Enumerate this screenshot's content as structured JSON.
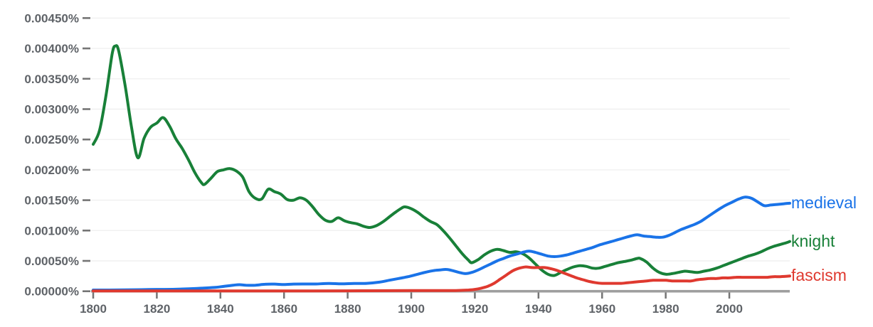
{
  "chart_data": {
    "type": "line",
    "title": "",
    "grid": true,
    "legend_position": "right-end-labels",
    "x_axis": {
      "min": 1800,
      "max": 2019,
      "tick_labels": [
        "1800",
        "1820",
        "1840",
        "1860",
        "1880",
        "1900",
        "1920",
        "1940",
        "1960",
        "1980",
        "2000"
      ],
      "tick_values": [
        1800,
        1820,
        1840,
        1860,
        1880,
        1900,
        1920,
        1940,
        1960,
        1980,
        2000
      ]
    },
    "y_axis": {
      "min": 0,
      "max": 0.0045,
      "unit": "%",
      "tick_labels": [
        "0.00000%",
        "0.00050%",
        "0.00100%",
        "0.00150%",
        "0.00200%",
        "0.00250%",
        "0.00300%",
        "0.00350%",
        "0.00400%",
        "0.00450%"
      ],
      "tick_values": [
        0.0,
        0.0005,
        0.001,
        0.0015,
        0.002,
        0.0025,
        0.003,
        0.0035,
        0.004,
        0.0045
      ]
    },
    "colors": {
      "medieval": "#1a73e8",
      "knight": "#188038",
      "fascism": "#df392f",
      "axis_line": "#9e9e9e",
      "tick": "#757575",
      "grid_line": "#f0f0f0",
      "axis_text": "#5f6368"
    },
    "series": [
      {
        "label": "medieval",
        "color": "#1a73e8",
        "points": [
          [
            1800,
            2e-05
          ],
          [
            1805,
            2e-05
          ],
          [
            1810,
            2.2e-05
          ],
          [
            1815,
            2.6e-05
          ],
          [
            1820,
            3e-05
          ],
          [
            1825,
            3.2e-05
          ],
          [
            1830,
            4e-05
          ],
          [
            1834,
            5e-05
          ],
          [
            1838,
            6.2e-05
          ],
          [
            1841,
            8e-05
          ],
          [
            1844,
            0.0001
          ],
          [
            1846,
            0.000108
          ],
          [
            1848,
            0.0001
          ],
          [
            1851,
            0.0001
          ],
          [
            1854,
            0.000115
          ],
          [
            1857,
            0.000118
          ],
          [
            1860,
            0.00011
          ],
          [
            1863,
            0.000118
          ],
          [
            1866,
            0.00012
          ],
          [
            1870,
            0.00012
          ],
          [
            1874,
            0.000128
          ],
          [
            1878,
            0.000122
          ],
          [
            1882,
            0.000128
          ],
          [
            1886,
            0.00013
          ],
          [
            1890,
            0.00015
          ],
          [
            1893,
            0.00018
          ],
          [
            1896,
            0.00021
          ],
          [
            1899,
            0.00024
          ],
          [
            1902,
            0.00028
          ],
          [
            1905,
            0.00032
          ],
          [
            1907,
            0.00034
          ],
          [
            1909,
            0.00035
          ],
          [
            1911,
            0.00036
          ],
          [
            1913,
            0.00034
          ],
          [
            1915,
            0.00031
          ],
          [
            1917,
            0.00029
          ],
          [
            1919,
            0.00031
          ],
          [
            1921,
            0.00035
          ],
          [
            1923,
            0.0004
          ],
          [
            1925,
            0.00045
          ],
          [
            1927,
            0.0005
          ],
          [
            1929,
            0.00054
          ],
          [
            1931,
            0.00058
          ],
          [
            1933,
            0.00061
          ],
          [
            1935,
            0.00064
          ],
          [
            1937,
            0.00066
          ],
          [
            1939,
            0.00064
          ],
          [
            1941,
            0.00061
          ],
          [
            1943,
            0.00058
          ],
          [
            1945,
            0.00057
          ],
          [
            1947,
            0.00058
          ],
          [
            1949,
            0.0006
          ],
          [
            1951,
            0.00063
          ],
          [
            1953,
            0.00066
          ],
          [
            1955,
            0.00069
          ],
          [
            1957,
            0.00072
          ],
          [
            1959,
            0.00076
          ],
          [
            1961,
            0.00079
          ],
          [
            1963,
            0.00082
          ],
          [
            1965,
            0.00085
          ],
          [
            1967,
            0.00088
          ],
          [
            1969,
            0.00091
          ],
          [
            1971,
            0.00093
          ],
          [
            1973,
            0.00091
          ],
          [
            1975,
            0.0009
          ],
          [
            1977,
            0.00089
          ],
          [
            1979,
            0.00089
          ],
          [
            1981,
            0.00092
          ],
          [
            1983,
            0.00097
          ],
          [
            1985,
            0.00102
          ],
          [
            1987,
            0.00106
          ],
          [
            1989,
            0.0011
          ],
          [
            1991,
            0.00115
          ],
          [
            1993,
            0.00122
          ],
          [
            1995,
            0.00129
          ],
          [
            1997,
            0.00136
          ],
          [
            1999,
            0.00142
          ],
          [
            2001,
            0.00147
          ],
          [
            2003,
            0.00152
          ],
          [
            2005,
            0.00155
          ],
          [
            2007,
            0.00153
          ],
          [
            2009,
            0.00147
          ],
          [
            2011,
            0.00141
          ],
          [
            2013,
            0.00142
          ],
          [
            2015,
            0.00143
          ],
          [
            2017,
            0.00144
          ],
          [
            2019,
            0.00145
          ]
        ]
      },
      {
        "label": "knight",
        "color": "#188038",
        "points": [
          [
            1800,
            0.00242
          ],
          [
            1802,
            0.00265
          ],
          [
            1804,
            0.00322
          ],
          [
            1806,
            0.00392
          ],
          [
            1807,
            0.00404
          ],
          [
            1808,
            0.00396
          ],
          [
            1810,
            0.0034
          ],
          [
            1812,
            0.00272
          ],
          [
            1814,
            0.0022
          ],
          [
            1816,
            0.00252
          ],
          [
            1818,
            0.0027
          ],
          [
            1820,
            0.00277
          ],
          [
            1822,
            0.00286
          ],
          [
            1824,
            0.00272
          ],
          [
            1826,
            0.00251
          ],
          [
            1828,
            0.00235
          ],
          [
            1830,
            0.00216
          ],
          [
            1832,
            0.00195
          ],
          [
            1834,
            0.00179
          ],
          [
            1835,
            0.00176
          ],
          [
            1837,
            0.00186
          ],
          [
            1839,
            0.00197
          ],
          [
            1841,
            0.002
          ],
          [
            1843,
            0.00202
          ],
          [
            1845,
            0.00198
          ],
          [
            1847,
            0.00188
          ],
          [
            1849,
            0.00164
          ],
          [
            1851,
            0.00153
          ],
          [
            1853,
            0.00152
          ],
          [
            1855,
            0.00168
          ],
          [
            1857,
            0.00164
          ],
          [
            1859,
            0.0016
          ],
          [
            1861,
            0.00151
          ],
          [
            1863,
            0.0015
          ],
          [
            1865,
            0.00154
          ],
          [
            1867,
            0.0015
          ],
          [
            1869,
            0.00139
          ],
          [
            1871,
            0.00126
          ],
          [
            1873,
            0.00117
          ],
          [
            1875,
            0.00115
          ],
          [
            1877,
            0.00121
          ],
          [
            1879,
            0.00116
          ],
          [
            1881,
            0.00113
          ],
          [
            1883,
            0.00111
          ],
          [
            1885,
            0.00107
          ],
          [
            1887,
            0.00105
          ],
          [
            1889,
            0.00108
          ],
          [
            1891,
            0.00114
          ],
          [
            1893,
            0.00122
          ],
          [
            1895,
            0.0013
          ],
          [
            1897,
            0.00137
          ],
          [
            1898,
            0.00139
          ],
          [
            1900,
            0.00136
          ],
          [
            1902,
            0.0013
          ],
          [
            1904,
            0.00122
          ],
          [
            1906,
            0.00115
          ],
          [
            1908,
            0.0011
          ],
          [
            1910,
            0.001
          ],
          [
            1912,
            0.00088
          ],
          [
            1914,
            0.00075
          ],
          [
            1916,
            0.00062
          ],
          [
            1918,
            0.00051
          ],
          [
            1919,
            0.00047
          ],
          [
            1921,
            0.00052
          ],
          [
            1923,
            0.0006
          ],
          [
            1925,
            0.00066
          ],
          [
            1927,
            0.00069
          ],
          [
            1929,
            0.00067
          ],
          [
            1931,
            0.00064
          ],
          [
            1933,
            0.00065
          ],
          [
            1935,
            0.00062
          ],
          [
            1937,
            0.00055
          ],
          [
            1939,
            0.00045
          ],
          [
            1941,
            0.00035
          ],
          [
            1943,
            0.00028
          ],
          [
            1945,
            0.00026
          ],
          [
            1947,
            0.00031
          ],
          [
            1949,
            0.00036
          ],
          [
            1951,
            0.0004
          ],
          [
            1953,
            0.00042
          ],
          [
            1955,
            0.00041
          ],
          [
            1957,
            0.00038
          ],
          [
            1959,
            0.00038
          ],
          [
            1961,
            0.00041
          ],
          [
            1963,
            0.00044
          ],
          [
            1965,
            0.00047
          ],
          [
            1967,
            0.00049
          ],
          [
            1969,
            0.00051
          ],
          [
            1971,
            0.00054
          ],
          [
            1972,
            0.00054
          ],
          [
            1974,
            0.00048
          ],
          [
            1976,
            0.00038
          ],
          [
            1978,
            0.00031
          ],
          [
            1980,
            0.00028
          ],
          [
            1982,
            0.00029
          ],
          [
            1984,
            0.00031
          ],
          [
            1986,
            0.00033
          ],
          [
            1988,
            0.00032
          ],
          [
            1990,
            0.00031
          ],
          [
            1992,
            0.00033
          ],
          [
            1994,
            0.00035
          ],
          [
            1996,
            0.00038
          ],
          [
            1998,
            0.00042
          ],
          [
            2000,
            0.00046
          ],
          [
            2002,
            0.0005
          ],
          [
            2004,
            0.00054
          ],
          [
            2006,
            0.00058
          ],
          [
            2008,
            0.00061
          ],
          [
            2010,
            0.00065
          ],
          [
            2012,
            0.0007
          ],
          [
            2014,
            0.00074
          ],
          [
            2016,
            0.00077
          ],
          [
            2018,
            0.0008
          ],
          [
            2019,
            0.00082
          ]
        ]
      },
      {
        "label": "fascism",
        "color": "#df392f",
        "points": [
          [
            1800,
            5e-06
          ],
          [
            1820,
            5e-06
          ],
          [
            1840,
            5e-06
          ],
          [
            1860,
            5e-06
          ],
          [
            1880,
            7e-06
          ],
          [
            1900,
            1e-05
          ],
          [
            1910,
            1e-05
          ],
          [
            1914,
            1.2e-05
          ],
          [
            1918,
            2e-05
          ],
          [
            1920,
            3e-05
          ],
          [
            1922,
            5e-05
          ],
          [
            1924,
            8e-05
          ],
          [
            1926,
            0.00013
          ],
          [
            1928,
            0.0002
          ],
          [
            1930,
            0.00027
          ],
          [
            1932,
            0.00034
          ],
          [
            1934,
            0.00038
          ],
          [
            1936,
            0.0004
          ],
          [
            1938,
            0.00039
          ],
          [
            1940,
            0.00039
          ],
          [
            1942,
            0.00039
          ],
          [
            1944,
            0.00037
          ],
          [
            1946,
            0.00034
          ],
          [
            1948,
            0.0003
          ],
          [
            1950,
            0.00026
          ],
          [
            1952,
            0.00022
          ],
          [
            1954,
            0.00019
          ],
          [
            1956,
            0.00016
          ],
          [
            1958,
            0.00014
          ],
          [
            1960,
            0.00013
          ],
          [
            1962,
            0.00013
          ],
          [
            1964,
            0.00013
          ],
          [
            1966,
            0.00013
          ],
          [
            1968,
            0.00014
          ],
          [
            1970,
            0.00015
          ],
          [
            1972,
            0.00016
          ],
          [
            1974,
            0.00017
          ],
          [
            1976,
            0.00018
          ],
          [
            1978,
            0.00018
          ],
          [
            1980,
            0.00018
          ],
          [
            1982,
            0.00017
          ],
          [
            1984,
            0.00017
          ],
          [
            1986,
            0.00017
          ],
          [
            1988,
            0.00017
          ],
          [
            1990,
            0.00019
          ],
          [
            1992,
            0.0002
          ],
          [
            1994,
            0.00021
          ],
          [
            1996,
            0.00021
          ],
          [
            1998,
            0.00022
          ],
          [
            2000,
            0.00022
          ],
          [
            2002,
            0.00023
          ],
          [
            2004,
            0.00023
          ],
          [
            2006,
            0.00023
          ],
          [
            2008,
            0.00023
          ],
          [
            2010,
            0.00023
          ],
          [
            2012,
            0.00023
          ],
          [
            2014,
            0.00024
          ],
          [
            2016,
            0.00024
          ],
          [
            2019,
            0.00025
          ]
        ]
      }
    ]
  }
}
